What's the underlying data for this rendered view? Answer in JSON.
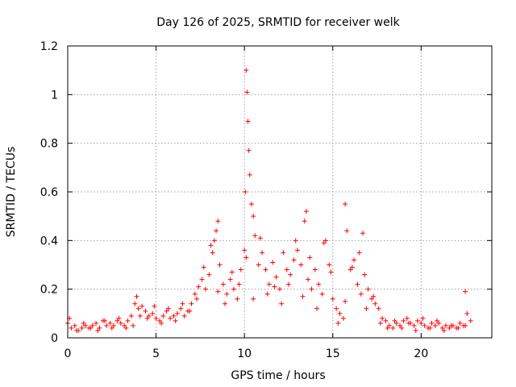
{
  "chart_data": {
    "type": "scatter",
    "title": "Day 126 of 2025, SRMTID for receiver welk",
    "xlabel": "GPS time / hours",
    "ylabel": "SRMTID / TECUs",
    "xlim": [
      0,
      24
    ],
    "ylim": [
      0,
      1.2
    ],
    "x_ticks": [
      0,
      5,
      10,
      15,
      20
    ],
    "x_tick_labels": [
      "0",
      "5",
      "10",
      "15",
      "20"
    ],
    "y_ticks": [
      0,
      0.2,
      0.4,
      0.6,
      0.8,
      1.0,
      1.2
    ],
    "y_tick_labels": [
      "0",
      "0.2",
      "0.4",
      "0.6",
      "0.8",
      "1",
      "1.2"
    ],
    "grid": true,
    "marker": "+",
    "series": [
      {
        "name": "SRMTID",
        "color": "#ff0000",
        "x": [
          0.0,
          0.2,
          0.4,
          0.6,
          0.8,
          1.0,
          1.2,
          1.4,
          1.6,
          1.8,
          2.0,
          2.2,
          2.4,
          2.6,
          2.8,
          3.0,
          3.2,
          3.4,
          3.6,
          3.8,
          3.9,
          4.0,
          4.2,
          4.4,
          4.6,
          4.8,
          5.0,
          5.2,
          5.4,
          5.6,
          5.8,
          6.0,
          6.2,
          6.4,
          6.6,
          6.8,
          7.0,
          7.2,
          7.4,
          7.6,
          7.8,
          8.0,
          8.2,
          8.3,
          8.4,
          8.5,
          8.6,
          8.8,
          9.0,
          9.2,
          9.4,
          9.6,
          9.8,
          10.0,
          10.05,
          10.1,
          10.15,
          10.2,
          10.25,
          10.3,
          10.4,
          10.5,
          10.6,
          10.8,
          11.0,
          11.2,
          11.4,
          11.6,
          11.8,
          12.0,
          12.2,
          12.4,
          12.6,
          12.8,
          13.0,
          13.2,
          13.4,
          13.5,
          13.6,
          13.8,
          14.0,
          14.2,
          14.4,
          14.6,
          14.8,
          15.0,
          15.2,
          15.4,
          15.6,
          15.7,
          15.8,
          16.0,
          16.2,
          16.4,
          16.6,
          16.7,
          16.8,
          17.0,
          17.2,
          17.4,
          17.6,
          17.8,
          18.0,
          18.2,
          18.4,
          18.6,
          18.8,
          19.0,
          19.2,
          19.4,
          19.6,
          19.8,
          20.0,
          20.2,
          20.4,
          20.6,
          20.8,
          21.0,
          21.2,
          21.4,
          21.6,
          21.8,
          22.0,
          22.2,
          22.4,
          22.5,
          22.6,
          22.8,
          0.1,
          0.5,
          0.9,
          1.3,
          1.7,
          2.1,
          2.5,
          2.9,
          3.3,
          3.7,
          4.1,
          4.5,
          4.9,
          5.3,
          5.7,
          6.1,
          6.5,
          6.9,
          7.3,
          7.7,
          8.1,
          8.5,
          8.9,
          9.3,
          9.7,
          10.1,
          10.5,
          10.9,
          11.3,
          11.7,
          12.1,
          12.5,
          12.9,
          13.3,
          13.7,
          14.1,
          14.5,
          14.9,
          15.3,
          15.7,
          16.1,
          16.5,
          16.9,
          17.3,
          17.7,
          18.1,
          18.5,
          18.9,
          19.3,
          19.7,
          20.1,
          20.5,
          20.9,
          21.3,
          21.7,
          22.1,
          22.5
        ],
        "y": [
          0.06,
          0.04,
          0.05,
          0.03,
          0.04,
          0.05,
          0.04,
          0.05,
          0.06,
          0.04,
          0.07,
          0.05,
          0.06,
          0.05,
          0.07,
          0.06,
          0.05,
          0.07,
          0.09,
          0.14,
          0.17,
          0.12,
          0.13,
          0.11,
          0.09,
          0.1,
          0.08,
          0.07,
          0.09,
          0.11,
          0.08,
          0.09,
          0.1,
          0.12,
          0.09,
          0.11,
          0.14,
          0.18,
          0.21,
          0.24,
          0.2,
          0.26,
          0.35,
          0.4,
          0.44,
          0.48,
          0.3,
          0.22,
          0.18,
          0.24,
          0.2,
          0.16,
          0.28,
          0.36,
          0.6,
          1.1,
          1.01,
          0.89,
          0.77,
          0.67,
          0.55,
          0.5,
          0.42,
          0.3,
          0.35,
          0.28,
          0.22,
          0.31,
          0.25,
          0.2,
          0.35,
          0.28,
          0.26,
          0.32,
          0.36,
          0.3,
          0.48,
          0.52,
          0.24,
          0.2,
          0.28,
          0.22,
          0.18,
          0.4,
          0.3,
          0.16,
          0.12,
          0.1,
          0.08,
          0.55,
          0.44,
          0.28,
          0.32,
          0.22,
          0.18,
          0.43,
          0.26,
          0.2,
          0.16,
          0.14,
          0.12,
          0.08,
          0.07,
          0.05,
          0.04,
          0.06,
          0.05,
          0.07,
          0.08,
          0.06,
          0.05,
          0.07,
          0.06,
          0.05,
          0.04,
          0.06,
          0.05,
          0.06,
          0.04,
          0.05,
          0.04,
          0.05,
          0.04,
          0.06,
          0.05,
          0.19,
          0.1,
          0.07,
          0.08,
          0.03,
          0.06,
          0.04,
          0.03,
          0.07,
          0.04,
          0.08,
          0.04,
          0.05,
          0.09,
          0.08,
          0.13,
          0.06,
          0.12,
          0.07,
          0.14,
          0.11,
          0.16,
          0.29,
          0.38,
          0.19,
          0.14,
          0.27,
          0.22,
          0.33,
          0.16,
          0.41,
          0.18,
          0.21,
          0.14,
          0.22,
          0.4,
          0.17,
          0.33,
          0.12,
          0.39,
          0.27,
          0.06,
          0.15,
          0.29,
          0.35,
          0.12,
          0.17,
          0.06,
          0.04,
          0.07,
          0.04,
          0.06,
          0.03,
          0.08,
          0.04,
          0.07,
          0.03,
          0.05,
          0.04,
          0.05
        ]
      }
    ]
  }
}
